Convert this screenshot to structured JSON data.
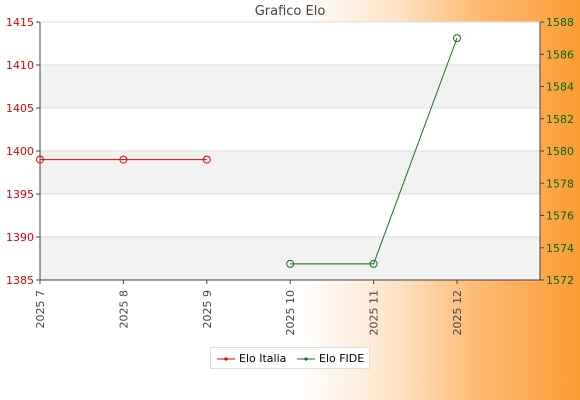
{
  "chart_data": {
    "type": "line",
    "title": "Grafico Elo",
    "categories": [
      "2025 7",
      "2025 8",
      "2025 9",
      "2025 10",
      "2025 11",
      "2025 12"
    ],
    "y_left": {
      "min": 1385,
      "max": 1415,
      "ticks": [
        1385,
        1390,
        1395,
        1400,
        1405,
        1410,
        1415
      ],
      "color": "#e00000"
    },
    "y_right": {
      "min": 1572,
      "max": 1588,
      "ticks": [
        1572,
        1574,
        1576,
        1578,
        1580,
        1582,
        1584,
        1586,
        1588
      ],
      "color": "#006600"
    },
    "grid": true,
    "legend_position": "bottom",
    "series": [
      {
        "name": "Elo Italia",
        "axis": "left",
        "color": "#e00000",
        "values": [
          1399,
          1399,
          1399,
          null,
          null,
          null
        ]
      },
      {
        "name": "Elo FIDE",
        "axis": "right",
        "color": "#1a6e1a",
        "values": [
          null,
          null,
          null,
          1573,
          1573,
          1587
        ]
      }
    ]
  }
}
